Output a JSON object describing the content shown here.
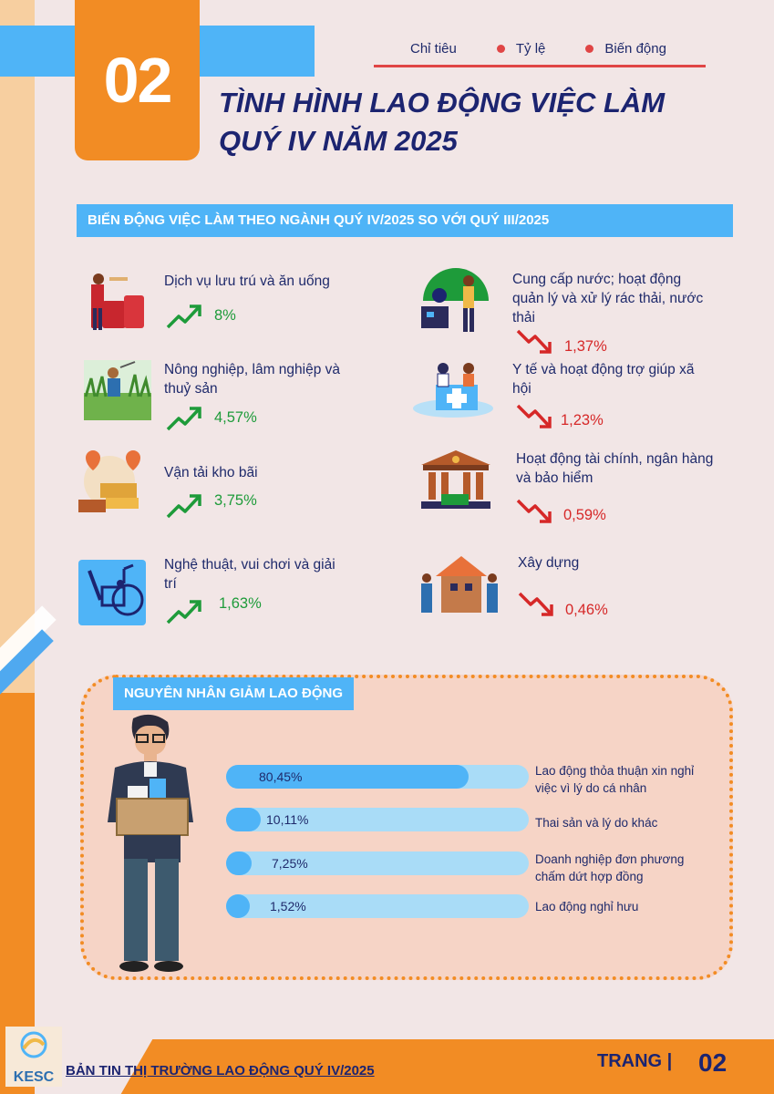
{
  "header": {
    "section_number": "02",
    "legend": [
      "Chỉ tiêu",
      "Tỷ lệ",
      "Biến động"
    ],
    "title_line1": "TÌNH HÌNH LAO ĐỘNG VIỆC LÀM",
    "title_line2": "QUÝ IV NĂM 2025"
  },
  "colors": {
    "orange": "#f28c24",
    "blue": "#4fb4f7",
    "navy": "#1c2470",
    "up": "#1e9b3a",
    "down": "#d62828"
  },
  "sectors": {
    "title": "BIẾN ĐỘNG VIỆC LÀM THEO NGÀNH QUÝ IV/2025 SO VỚI QUÝ III/2025",
    "increase": [
      {
        "label": "Dịch vụ lưu trú và ăn uống",
        "value": "8%",
        "icon": "hotel-bellboy-icon"
      },
      {
        "label": "Nông nghiệp, lâm nghiệp và thuỷ sản",
        "value": "4,57%",
        "icon": "farming-icon"
      },
      {
        "label": "Vận tải kho bãi",
        "value": "3,75%",
        "icon": "logistics-icon"
      },
      {
        "label": "Nghệ thuật, vui chơi và giải trí",
        "value": "1,63%",
        "icon": "music-art-icon"
      }
    ],
    "decrease": [
      {
        "label": "Cung cấp nước; hoạt động quản lý và xử lý rác thải, nước thải",
        "value": "1,37%",
        "icon": "water-waste-icon"
      },
      {
        "label": "Y tế và hoạt động trợ giúp xã hội",
        "value": "1,23%",
        "icon": "healthcare-icon"
      },
      {
        "label": "Hoạt động tài chính, ngân hàng và bảo hiểm",
        "value": "0,59%",
        "icon": "bank-icon"
      },
      {
        "label": "Xây dựng",
        "value": "0,46%",
        "icon": "construction-icon"
      }
    ]
  },
  "causes": {
    "title": "NGUYÊN NHÂN GIẢM LAO ĐỘNG",
    "items": [
      {
        "label": "Lao động thỏa thuận xin nghỉ việc vì lý do cá nhân",
        "value": "80,45%",
        "percent": 80.45
      },
      {
        "label": "Thai sản và lý do khác",
        "value": "10,11%",
        "percent": 10.11
      },
      {
        "label": "Doanh nghiệp đơn phương chấm dứt hợp đồng",
        "value": "7,25%",
        "percent": 7.25
      },
      {
        "label": "Lao động nghỉ hưu",
        "value": "1,52%",
        "percent": 1.52
      }
    ]
  },
  "footer": {
    "logo_text": "KESC",
    "bulletin": "BẢN TIN THỊ TRƯỜNG LAO ĐỘNG QUÝ IV/2025",
    "page_label": "TRANG |",
    "page_number": "02"
  }
}
